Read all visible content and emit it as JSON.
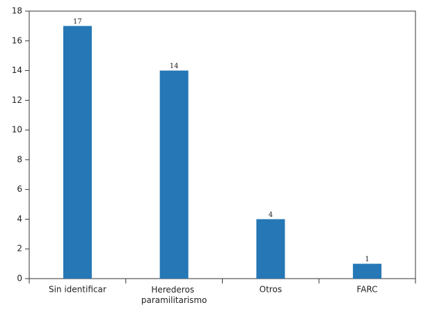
{
  "chart_data": {
    "type": "bar",
    "categories": [
      "Sin identificar",
      "Herederos paramilitarismo",
      "Otros",
      "FARC"
    ],
    "values": [
      17,
      14,
      4,
      1
    ],
    "color": "#2577b5",
    "ylim": [
      0,
      18
    ],
    "yticks": [
      0,
      2,
      4,
      6,
      8,
      10,
      12,
      14,
      16,
      18
    ],
    "grid": false
  }
}
